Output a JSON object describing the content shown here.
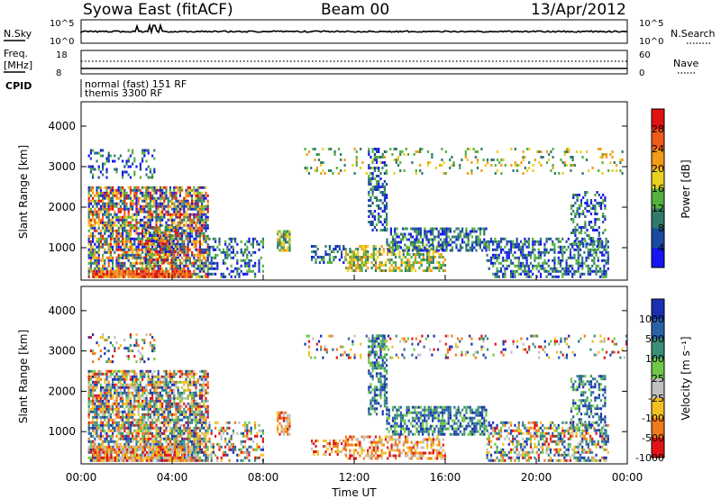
{
  "header": {
    "station": "Syowa East (fitACF)",
    "beam": "Beam 00",
    "date": "13/Apr/2012"
  },
  "top_panels": {
    "nsky_label": "N.Sky",
    "nsky_ticks": [
      "10^5",
      "10^0"
    ],
    "nsearch_label": "N.Search",
    "nsearch_ticks": [
      "10^5",
      "10^0"
    ],
    "freq_label": "Freq.",
    "freq_unit": "[MHz]",
    "freq_ticks": [
      "18",
      "8"
    ],
    "nave_label": "Nave",
    "nave_ticks": [
      "60",
      "0"
    ],
    "cpid_label": "CPID",
    "cpid_entries": [
      "normal (fast) 151 RF",
      "themis 3300 RF"
    ]
  },
  "chart_data": [
    {
      "type": "heatmap",
      "name": "power-panel",
      "ylabel": "Slant Range [km]",
      "yticks": [
        1000,
        2000,
        3000,
        4000
      ],
      "ylim": [
        200,
        4600
      ],
      "xlim": [
        0,
        24
      ],
      "colorbar": {
        "label": "Power [dB]",
        "ticks": [
          "4",
          "8",
          "12",
          "16",
          "20",
          "24",
          "28"
        ],
        "colors": [
          "#1515f0",
          "#1a4ba0",
          "#2f7a6b",
          "#55b040",
          "#e8d020",
          "#f29a1a",
          "#ef5a18",
          "#e01212"
        ]
      },
      "clusters": [
        {
          "t": [
            0.3,
            5.6
          ],
          "r": [
            250,
            2500
          ],
          "level": "high",
          "density": 0.75
        },
        {
          "t": [
            0.5,
            4.8
          ],
          "r": [
            250,
            450
          ],
          "level": "max",
          "density": 0.9
        },
        {
          "t": [
            2.8,
            4.2
          ],
          "r": [
            600,
            1500
          ],
          "level": "high",
          "density": 0.75
        },
        {
          "t": [
            0.3,
            3.2
          ],
          "r": [
            2700,
            3400
          ],
          "level": "low",
          "density": 0.25
        },
        {
          "t": [
            5.6,
            8.0
          ],
          "r": [
            250,
            1200
          ],
          "level": "low",
          "density": 0.35
        },
        {
          "t": [
            8.6,
            9.2
          ],
          "r": [
            900,
            1400
          ],
          "level": "mid",
          "density": 0.8
        },
        {
          "t": [
            10.1,
            11.6
          ],
          "r": [
            600,
            1000
          ],
          "level": "low",
          "density": 0.4
        },
        {
          "t": [
            11.6,
            16.0
          ],
          "r": [
            400,
            1000
          ],
          "level": "mid",
          "density": 0.55
        },
        {
          "t": [
            12.6,
            13.4
          ],
          "r": [
            1400,
            3400
          ],
          "level": "low",
          "density": 0.5
        },
        {
          "t": [
            13.4,
            17.8
          ],
          "r": [
            900,
            1500
          ],
          "level": "low",
          "density": 0.6
        },
        {
          "t": [
            17.8,
            23.2
          ],
          "r": [
            250,
            1200
          ],
          "level": "low",
          "density": 0.5
        },
        {
          "t": [
            21.5,
            23.0
          ],
          "r": [
            1000,
            2400
          ],
          "level": "low",
          "density": 0.4
        },
        {
          "t": [
            9.8,
            24.0
          ],
          "r": [
            2800,
            3400
          ],
          "level": "mid",
          "density": 0.15
        }
      ]
    },
    {
      "type": "heatmap",
      "name": "velocity-panel",
      "ylabel": "Slant Range [km]",
      "yticks": [
        1000,
        2000,
        3000,
        4000
      ],
      "ylim": [
        200,
        4600
      ],
      "xlim": [
        0,
        24
      ],
      "xticks": [
        "00:00",
        "04:00",
        "08:00",
        "12:00",
        "16:00",
        "20:00",
        "00:00"
      ],
      "xlabel": "Time UT",
      "colorbar": {
        "label": "Velocity [m s⁻¹]",
        "ticks": [
          "1000",
          "500",
          "100",
          "25",
          "-25",
          "-100",
          "-500",
          "-1000"
        ],
        "colors": [
          "#1a30b0",
          "#2a62a8",
          "#3b8f78",
          "#6fc84a",
          "#c0c0c0",
          "#f2c020",
          "#f07a1a",
          "#e01414"
        ]
      },
      "clusters": [
        {
          "t": [
            0.3,
            5.6
          ],
          "r": [
            250,
            2500
          ],
          "level": "mixed",
          "density": 0.75
        },
        {
          "t": [
            0.5,
            4.8
          ],
          "r": [
            250,
            600
          ],
          "level": "neg",
          "density": 0.85
        },
        {
          "t": [
            0.3,
            3.2
          ],
          "r": [
            2700,
            3400
          ],
          "level": "mixed",
          "density": 0.25
        },
        {
          "t": [
            5.6,
            8.0
          ],
          "r": [
            250,
            1200
          ],
          "level": "mixed",
          "density": 0.35
        },
        {
          "t": [
            8.6,
            9.2
          ],
          "r": [
            900,
            1500
          ],
          "level": "neg",
          "density": 0.85
        },
        {
          "t": [
            10.1,
            11.6
          ],
          "r": [
            400,
            800
          ],
          "level": "neg",
          "density": 0.5
        },
        {
          "t": [
            11.6,
            16.0
          ],
          "r": [
            300,
            900
          ],
          "level": "neg",
          "density": 0.5
        },
        {
          "t": [
            12.6,
            13.4
          ],
          "r": [
            1400,
            3400
          ],
          "level": "pos",
          "density": 0.55
        },
        {
          "t": [
            13.4,
            17.8
          ],
          "r": [
            900,
            1600
          ],
          "level": "pos",
          "density": 0.6
        },
        {
          "t": [
            17.8,
            23.2
          ],
          "r": [
            250,
            1200
          ],
          "level": "mixed",
          "density": 0.5
        },
        {
          "t": [
            21.5,
            23.0
          ],
          "r": [
            1000,
            2400
          ],
          "level": "pos",
          "density": 0.45
        },
        {
          "t": [
            9.8,
            24.0
          ],
          "r": [
            2800,
            3400
          ],
          "level": "mixed",
          "density": 0.15
        }
      ]
    }
  ]
}
